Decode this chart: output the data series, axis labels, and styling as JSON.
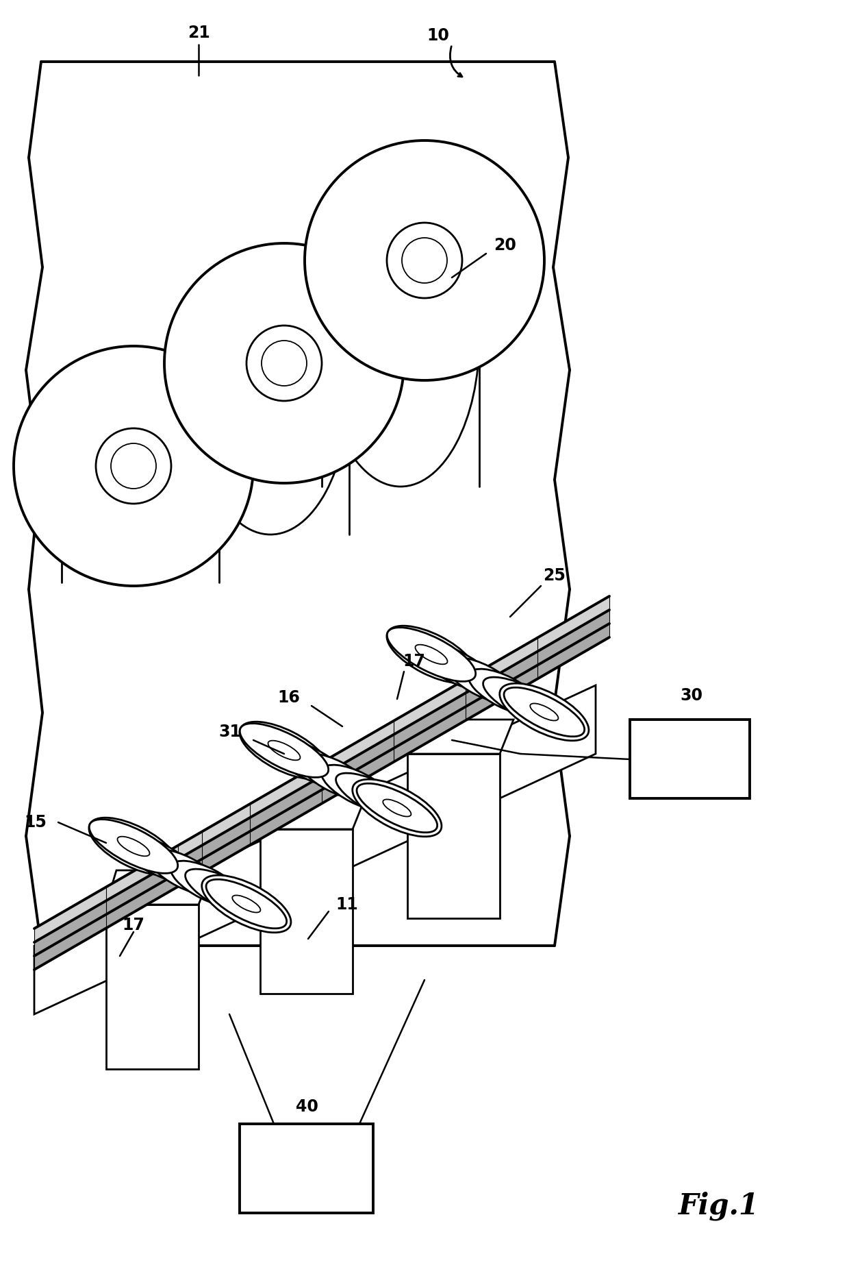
{
  "bg_color": "#ffffff",
  "fig_width": 12.4,
  "fig_height": 18.62,
  "dpi": 100
}
